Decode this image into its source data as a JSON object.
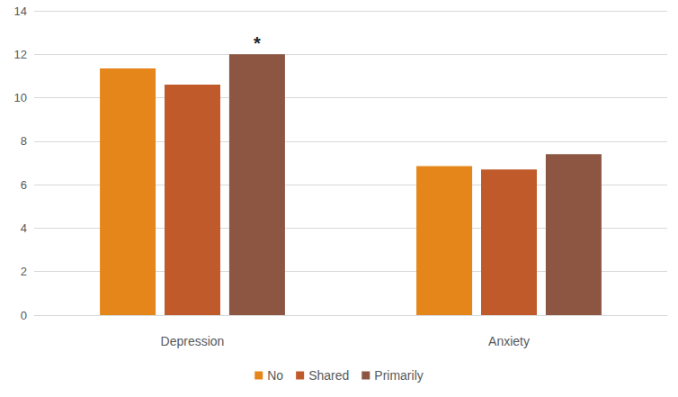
{
  "chart_data": {
    "type": "bar",
    "categories": [
      "Depression",
      "Anxiety"
    ],
    "series": [
      {
        "name": "No",
        "color": "#e5861b",
        "values": [
          11.35,
          6.85
        ]
      },
      {
        "name": "Shared",
        "color": "#c05a2a",
        "values": [
          10.6,
          6.7
        ]
      },
      {
        "name": "Primarily",
        "color": "#8c5642",
        "values": [
          12.0,
          7.4
        ]
      }
    ],
    "annotations": [
      {
        "text": "*",
        "series": "Primarily",
        "category": "Depression"
      }
    ],
    "ylim": [
      0,
      14
    ],
    "yticks": [
      0,
      2,
      4,
      6,
      8,
      10,
      12,
      14
    ],
    "grid": true,
    "legend": "bottom"
  }
}
